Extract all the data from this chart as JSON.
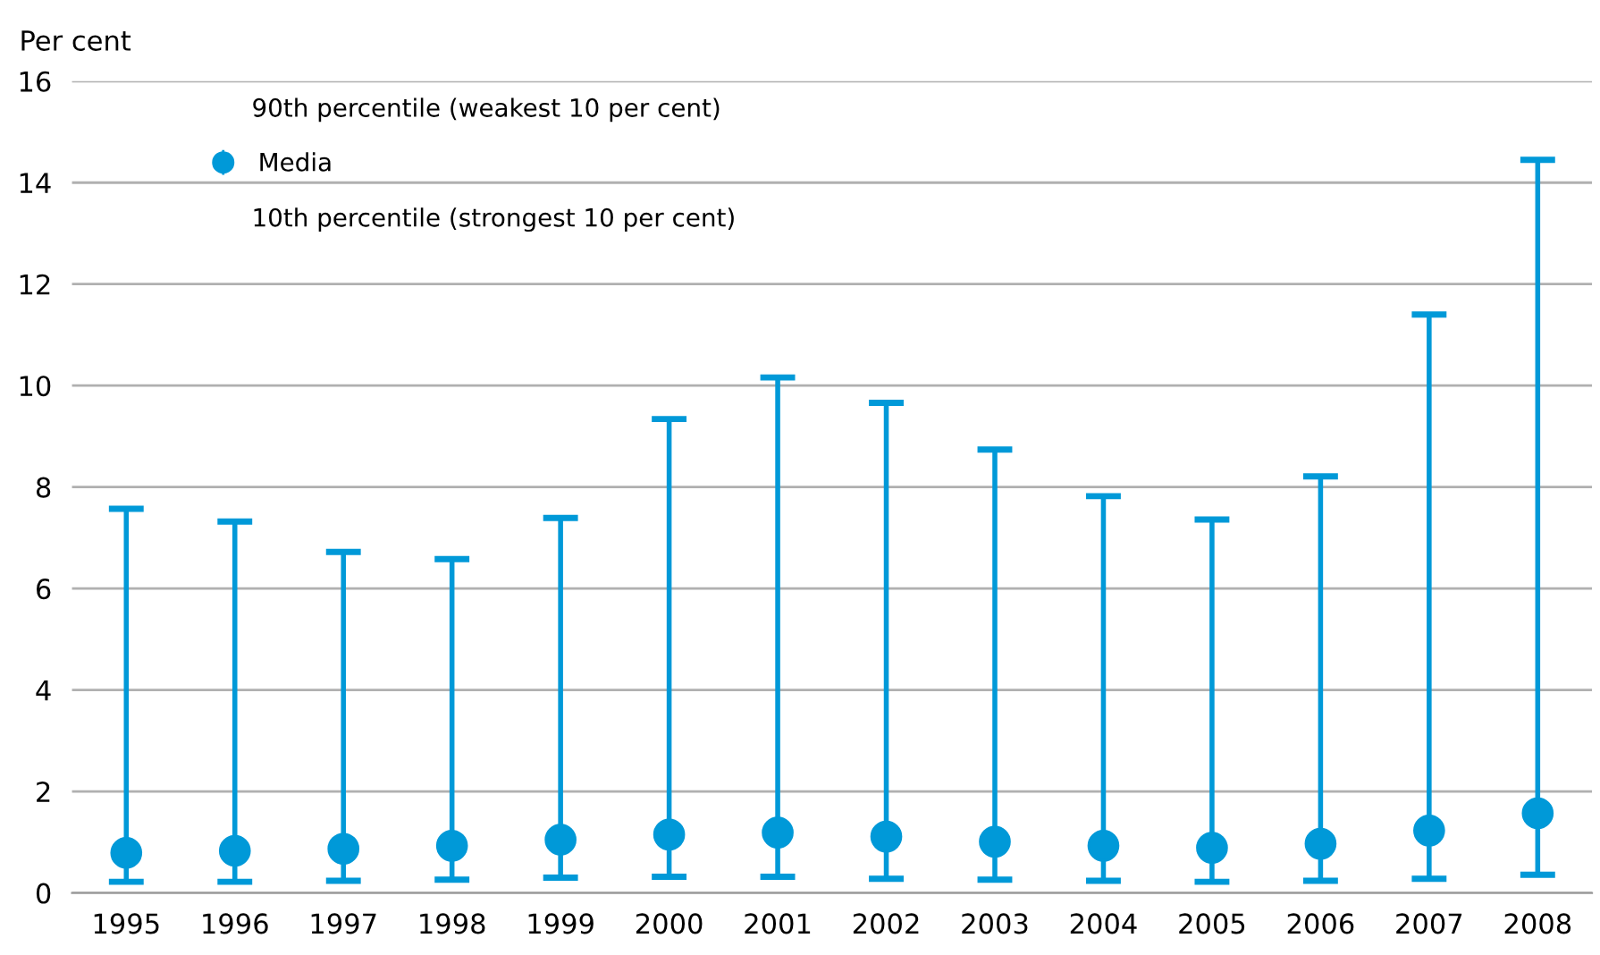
{
  "chart_data": {
    "type": "scatter",
    "ylabel": "Per cent",
    "categories": [
      "1995",
      "1996",
      "1997",
      "1998",
      "1999",
      "2000",
      "2001",
      "2002",
      "2003",
      "2004",
      "2005",
      "2006",
      "2007",
      "2008"
    ],
    "series": [
      {
        "name": "Media",
        "color": "#0099d8",
        "values": [
          0.79,
          0.83,
          0.87,
          0.93,
          1.05,
          1.15,
          1.19,
          1.11,
          1.01,
          0.93,
          0.89,
          0.97,
          1.23,
          1.57
        ],
        "errors": [
          [
            0.22,
            7.57
          ],
          [
            0.22,
            7.32
          ],
          [
            0.24,
            6.72
          ],
          [
            0.26,
            6.58
          ],
          [
            0.3,
            7.39
          ],
          [
            0.32,
            9.34
          ],
          [
            0.32,
            10.16
          ],
          [
            0.28,
            9.66
          ],
          [
            0.26,
            8.74
          ],
          [
            0.24,
            7.82
          ],
          [
            0.22,
            7.36
          ],
          [
            0.24,
            8.21
          ],
          [
            0.28,
            11.4
          ],
          [
            0.36,
            14.45
          ]
        ]
      }
    ],
    "annotations": [
      "90th percentile (weakest 10 per cent)",
      "10th percentile (strongest 10 per cent)"
    ],
    "ylim": [
      0,
      16
    ],
    "yticks": [
      0,
      2,
      4,
      6,
      8,
      10,
      12,
      14,
      16
    ],
    "grid": "y",
    "legend": "top left",
    "marker": "circle"
  }
}
